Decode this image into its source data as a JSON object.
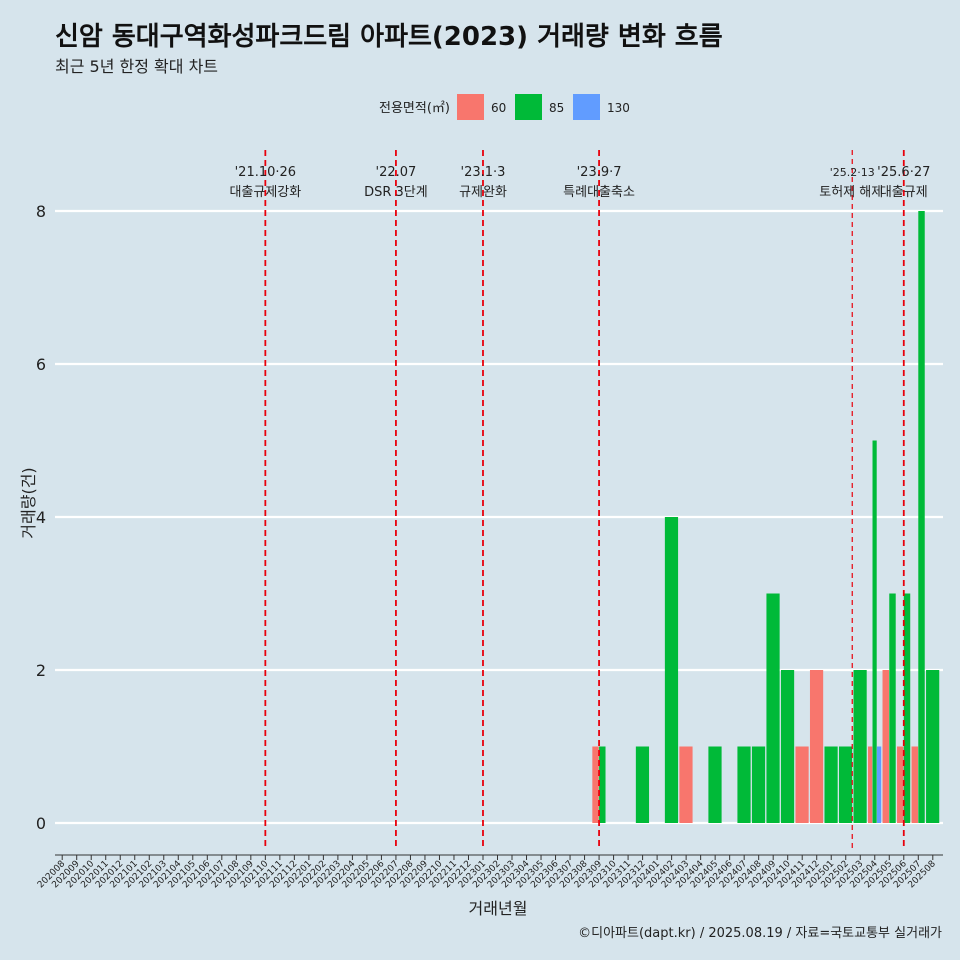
{
  "header": {
    "title": "신암 동대구역화성파크드림 아파트(2023) 거래량 변화 흐름",
    "subtitle": "최근 5년 한정 확대 차트"
  },
  "caption": "©디아파트(dapt.kr) / 2025.08.19 / 자료=국토교통부 실거래가",
  "colors": {
    "background": "#d6e4ec",
    "s60": "#f8766d",
    "s85": "#00ba38",
    "s130": "#619cff",
    "event_line": "#e8000b"
  },
  "chart_data": {
    "type": "bar",
    "title": "신암 동대구역화성파크드림 아파트(2023) 거래량 변화 흐름",
    "subtitle": "최근 5년 한정 확대 차트",
    "xlabel": "거래년월",
    "ylabel": "거래량(건)",
    "ylim": [
      0,
      8
    ],
    "yticks": [
      0,
      2,
      4,
      6,
      8
    ],
    "legend": {
      "title": "전용면적(㎡)",
      "position": "top"
    },
    "grid": true,
    "categories": [
      "202008",
      "202009",
      "202010",
      "202011",
      "202012",
      "202101",
      "202102",
      "202103",
      "202104",
      "202105",
      "202106",
      "202107",
      "202108",
      "202109",
      "202110",
      "202111",
      "202112",
      "202201",
      "202202",
      "202203",
      "202204",
      "202205",
      "202206",
      "202207",
      "202208",
      "202209",
      "202210",
      "202211",
      "202212",
      "202301",
      "202302",
      "202303",
      "202304",
      "202305",
      "202306",
      "202307",
      "202308",
      "202309",
      "202310",
      "202311",
      "202312",
      "202401",
      "202402",
      "202403",
      "202404",
      "202405",
      "202406",
      "202407",
      "202408",
      "202409",
      "202410",
      "202411",
      "202412",
      "202501",
      "202502",
      "202503",
      "202504",
      "202505",
      "202506",
      "202507",
      "202508"
    ],
    "series": [
      {
        "name": "60",
        "color": "#f8766d",
        "values": [
          0,
          0,
          0,
          0,
          0,
          0,
          0,
          0,
          0,
          0,
          0,
          0,
          0,
          0,
          0,
          0,
          0,
          0,
          0,
          0,
          0,
          0,
          0,
          0,
          0,
          0,
          0,
          0,
          0,
          0,
          0,
          0,
          0,
          0,
          0,
          0,
          0,
          1,
          0,
          0,
          0,
          0,
          0,
          1,
          0,
          0,
          0,
          0,
          0,
          0,
          0,
          1,
          2,
          0,
          0,
          0,
          1,
          2,
          1,
          1,
          0
        ]
      },
      {
        "name": "85",
        "color": "#00ba38",
        "values": [
          0,
          0,
          0,
          0,
          0,
          0,
          0,
          0,
          0,
          0,
          0,
          0,
          0,
          0,
          0,
          0,
          0,
          0,
          0,
          0,
          0,
          0,
          0,
          0,
          0,
          0,
          0,
          0,
          0,
          0,
          0,
          0,
          0,
          0,
          0,
          0,
          0,
          1,
          0,
          0,
          1,
          0,
          4,
          0,
          0,
          1,
          0,
          1,
          1,
          3,
          2,
          0,
          0,
          1,
          1,
          2,
          5,
          3,
          3,
          8,
          2
        ]
      },
      {
        "name": "130",
        "color": "#619cff",
        "values": [
          0,
          0,
          0,
          0,
          0,
          0,
          0,
          0,
          0,
          0,
          0,
          0,
          0,
          0,
          0,
          0,
          0,
          0,
          0,
          0,
          0,
          0,
          0,
          0,
          0,
          0,
          0,
          0,
          0,
          0,
          0,
          0,
          0,
          0,
          0,
          0,
          0,
          0,
          0,
          0,
          0,
          0,
          0,
          0,
          0,
          0,
          0,
          0,
          0,
          0,
          0,
          0,
          0,
          0,
          0,
          0,
          1,
          0,
          0,
          0,
          0
        ]
      }
    ],
    "annotations": [
      {
        "at": "202110",
        "date": "'21.10·26",
        "label": "대출규제강화"
      },
      {
        "at": "202207",
        "date": "'22.07",
        "label": "DSR 3단계"
      },
      {
        "at": "202301",
        "date": "'23.1·3",
        "label": "규제완화"
      },
      {
        "at": "202309",
        "date": "'23.9·7",
        "label": "특례대출축소"
      },
      {
        "at": "202502",
        "date": "'25.2·13",
        "label": "토허제 해제"
      },
      {
        "at": "202506",
        "date": "'25.6·27",
        "label": "대출규제"
      }
    ]
  }
}
